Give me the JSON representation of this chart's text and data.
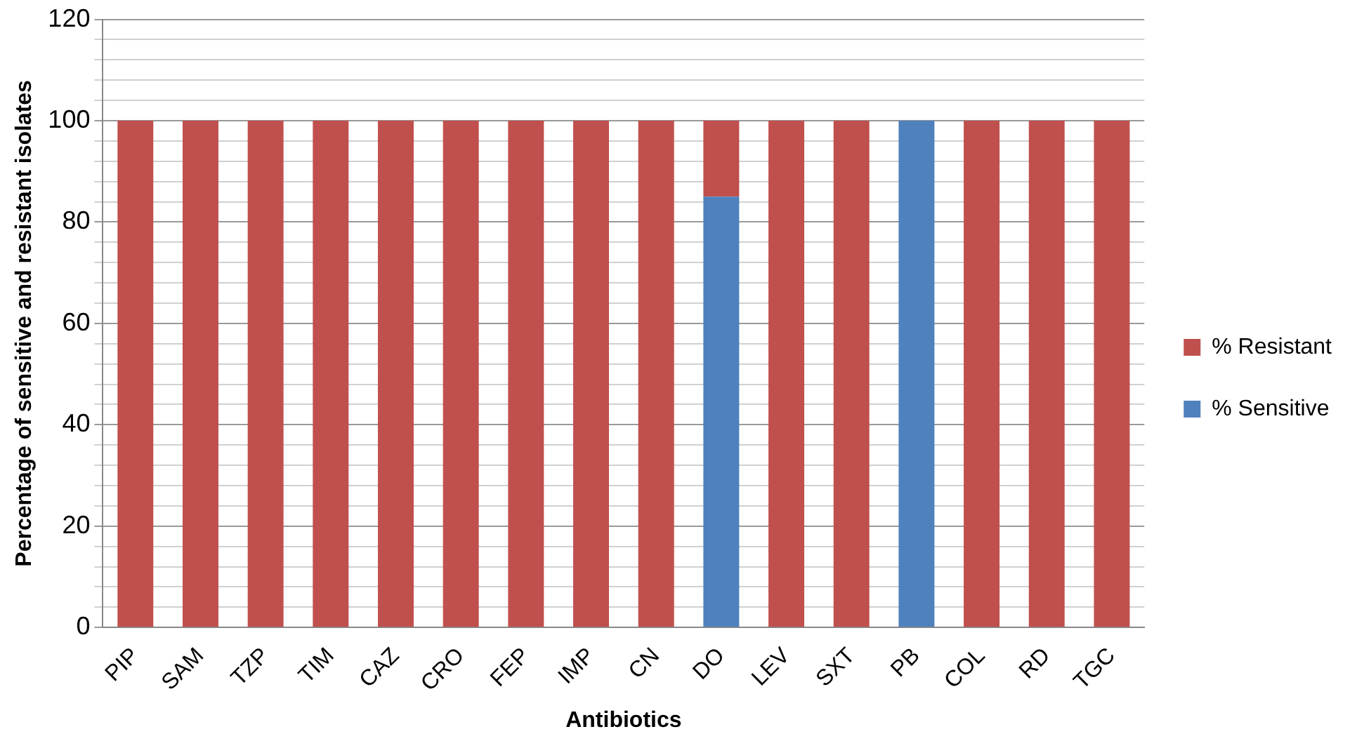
{
  "chart_data": {
    "type": "bar",
    "stacked": true,
    "xlabel": "Antibiotics",
    "ylabel": "Percentage of sensitive and resistant isolates",
    "categories": [
      "PIP",
      "SAM",
      "TZP",
      "TIM",
      "CAZ",
      "CRO",
      "FEP",
      "IMP",
      "CN",
      "DO",
      "LEV",
      "SXT",
      "PB",
      "COL",
      "RD",
      "TGC"
    ],
    "series": [
      {
        "name": "% Sensitive",
        "color": "#4f81bd",
        "values": [
          0,
          0,
          0,
          0,
          0,
          0,
          0,
          0,
          0,
          85,
          0,
          0,
          100,
          0,
          0,
          0
        ]
      },
      {
        "name": "% Resistant",
        "color": "#c0504d",
        "values": [
          100,
          100,
          100,
          100,
          100,
          100,
          100,
          100,
          100,
          15,
          100,
          100,
          0,
          100,
          100,
          100
        ]
      }
    ],
    "ylim": [
      0,
      120
    ],
    "yticks": [
      0,
      {
        "value": 4,
        "label": null
      },
      {
        "value": 8,
        "label": null
      },
      {
        "value": 12,
        "label": null
      },
      {
        "value": 16,
        "label": null
      },
      20,
      {
        "value": 24,
        "label": null
      },
      {
        "value": 28,
        "label": null
      },
      {
        "value": 32,
        "label": null
      },
      {
        "value": 36,
        "label": null
      },
      40,
      {
        "value": 44,
        "label": null
      },
      {
        "value": 48,
        "label": null
      },
      {
        "value": 52,
        "label": null
      },
      {
        "value": 56,
        "label": null
      },
      60,
      {
        "value": 64,
        "label": null
      },
      {
        "value": 68,
        "label": null
      },
      {
        "value": 72,
        "label": null
      },
      {
        "value": 76,
        "label": null
      },
      80,
      {
        "value": 84,
        "label": null
      },
      {
        "value": 88,
        "label": null
      },
      {
        "value": 92,
        "label": null
      },
      {
        "value": 96,
        "label": null
      },
      100,
      {
        "value": 104,
        "label": null
      },
      {
        "value": 108,
        "label": null
      },
      {
        "value": 112,
        "label": null
      },
      {
        "value": 116,
        "label": null
      },
      120
    ],
    "grid": "y",
    "legend": "right"
  }
}
